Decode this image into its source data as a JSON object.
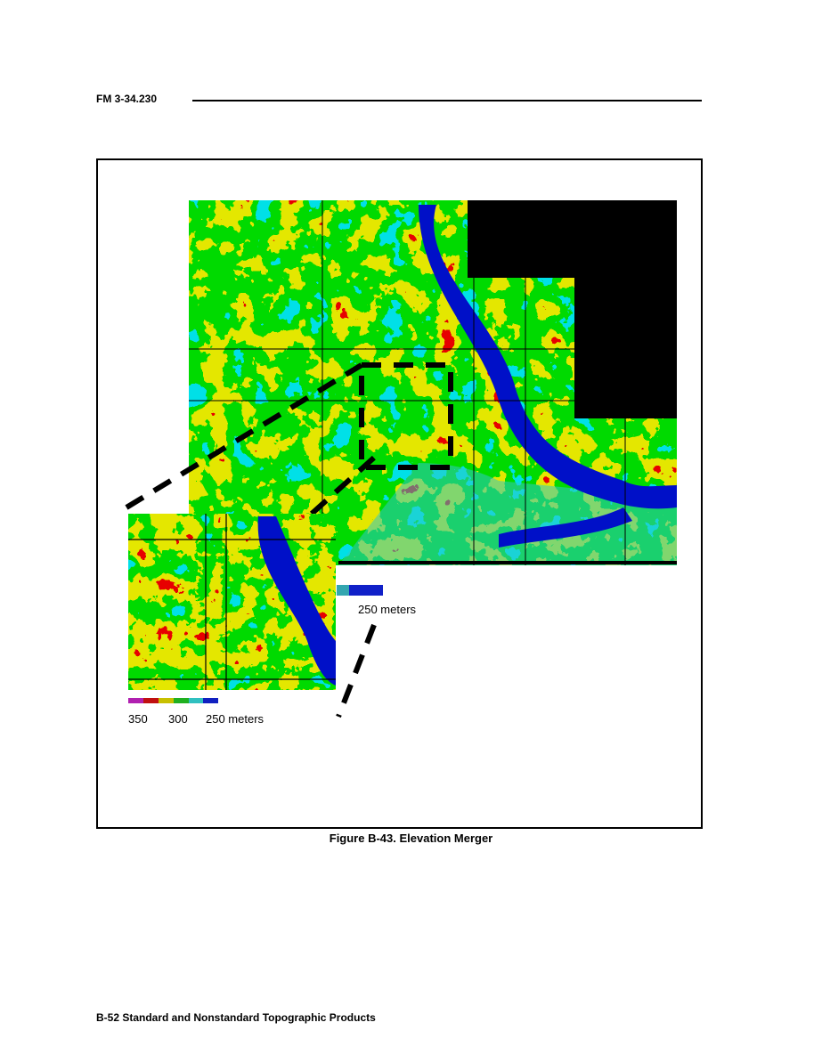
{
  "header": {
    "doc_id": "FM 3-34.230"
  },
  "figure": {
    "caption": "Figure B-43.  Elevation Merger",
    "main_legend": {
      "label": "250 meters",
      "colors": [
        "#33a6b0",
        "#1020c8"
      ]
    },
    "inset_legend": {
      "labels": [
        "350",
        "300",
        "250 meters"
      ],
      "colors": [
        "#b020b0",
        "#c01010",
        "#c8c000",
        "#20b020",
        "#30c0c0",
        "#1020c0"
      ]
    },
    "palette": {
      "high": "#c00000",
      "mid": "#c8c800",
      "low": "#00b400",
      "lower": "#00c8c8",
      "water": "#0010c8",
      "nodata": "#000000"
    }
  },
  "footer": {
    "text": "B-52  Standard and Nonstandard Topographic Products"
  }
}
